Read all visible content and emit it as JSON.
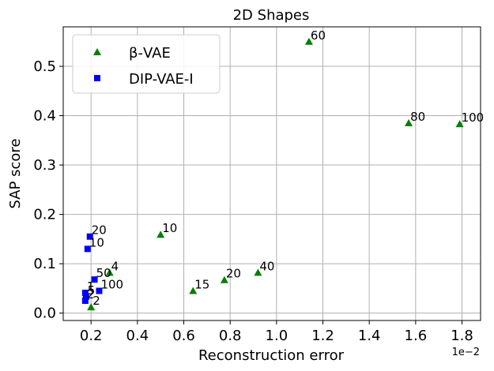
{
  "chart_data": {
    "type": "scatter",
    "title": "2D Shapes",
    "xlabel": "Reconstruction error",
    "ylabel": "SAP score",
    "x_offset_label": "1e−2",
    "xlim": [
      0.08,
      1.88
    ],
    "ylim": [
      -0.015,
      0.58
    ],
    "xticks": [
      0.2,
      0.4,
      0.6,
      0.8,
      1.0,
      1.2,
      1.4,
      1.6,
      1.8
    ],
    "xtick_labels": [
      "0.2",
      "0.4",
      "0.6",
      "0.8",
      "1.0",
      "1.2",
      "1.4",
      "1.6",
      "1.8"
    ],
    "yticks": [
      0.0,
      0.1,
      0.2,
      0.3,
      0.4,
      0.5
    ],
    "ytick_labels": [
      "0.0",
      "0.1",
      "0.2",
      "0.3",
      "0.4",
      "0.5"
    ],
    "grid": true,
    "legend_position": "top-left",
    "series": [
      {
        "name": "β-VAE",
        "marker": "triangle",
        "color": "#008000",
        "points": [
          {
            "x": 0.2,
            "y": 0.012,
            "label": "2"
          },
          {
            "x": 0.28,
            "y": 0.082,
            "label": "4"
          },
          {
            "x": 0.5,
            "y": 0.159,
            "label": "10"
          },
          {
            "x": 0.64,
            "y": 0.045,
            "label": "15"
          },
          {
            "x": 0.775,
            "y": 0.067,
            "label": "20"
          },
          {
            "x": 0.92,
            "y": 0.082,
            "label": "40"
          },
          {
            "x": 1.14,
            "y": 0.55,
            "label": "60"
          },
          {
            "x": 1.57,
            "y": 0.385,
            "label": "80"
          },
          {
            "x": 1.79,
            "y": 0.383,
            "label": "100"
          }
        ]
      },
      {
        "name": "DIP-VAE-I",
        "marker": "square",
        "color": "#0000ff",
        "points": [
          {
            "x": 0.195,
            "y": 0.155,
            "label": "20"
          },
          {
            "x": 0.185,
            "y": 0.13,
            "label": "10"
          },
          {
            "x": 0.215,
            "y": 0.068,
            "label": "50"
          },
          {
            "x": 0.235,
            "y": 0.045,
            "label": "100"
          },
          {
            "x": 0.175,
            "y": 0.041,
            "label": "1"
          },
          {
            "x": 0.178,
            "y": 0.033,
            "label": "5"
          },
          {
            "x": 0.175,
            "y": 0.025,
            "label": "2"
          }
        ]
      }
    ]
  }
}
